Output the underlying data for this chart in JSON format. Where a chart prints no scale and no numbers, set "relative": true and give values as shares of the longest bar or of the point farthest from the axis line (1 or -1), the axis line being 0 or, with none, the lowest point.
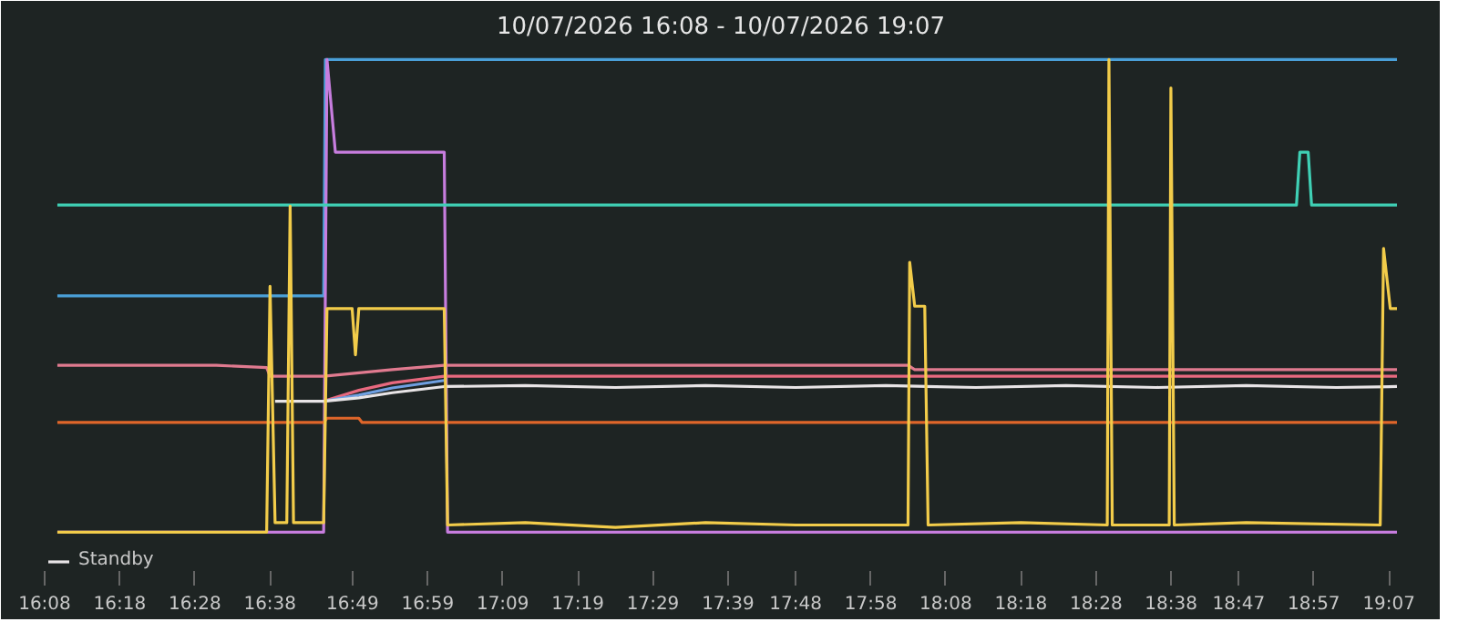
{
  "chart_data": {
    "type": "line",
    "title": "10/07/2026 16:08 - 10/07/2026 19:07",
    "relative": true,
    "legend": "bottom left",
    "grid": false,
    "xlim": [
      16.1333,
      19.1345
    ],
    "xticks": [
      {
        "value": 16.1333,
        "label": "16:08"
      },
      {
        "value": 16.3,
        "label": "16:18"
      },
      {
        "value": 16.4667,
        "label": "16:28"
      },
      {
        "value": 16.6333,
        "label": "16:38"
      },
      {
        "value": 16.8167,
        "label": "16:49"
      },
      {
        "value": 16.9833,
        "label": "16:59"
      },
      {
        "value": 17.15,
        "label": "17:09"
      },
      {
        "value": 17.3167,
        "label": "17:19"
      },
      {
        "value": 17.4833,
        "label": "17:29"
      },
      {
        "value": 17.65,
        "label": "17:39"
      },
      {
        "value": 17.8,
        "label": "17:48"
      },
      {
        "value": 17.9667,
        "label": "17:58"
      },
      {
        "value": 18.1333,
        "label": "18:08"
      },
      {
        "value": 18.3,
        "label": "18:18"
      },
      {
        "value": 18.4667,
        "label": "18:28"
      },
      {
        "value": 18.6333,
        "label": "18:38"
      },
      {
        "value": 18.7833,
        "label": "18:47"
      },
      {
        "value": 18.95,
        "label": "18:57"
      },
      {
        "value": 19.1167,
        "label": "19:07"
      }
    ],
    "series": [
      {
        "color": "#4a9fd8",
        "x": [
          16.1615,
          16.7525,
          16.7563,
          19.1345
        ],
        "values": [
          0.5,
          0.5,
          1.0,
          1.0
        ]
      },
      {
        "color": "#c77dde",
        "x": [
          16.1615,
          16.7525,
          16.7599,
          16.7785,
          17.0201,
          17.0275,
          19.1345
        ],
        "values": [
          0,
          0,
          1.0,
          0.804,
          0.804,
          0,
          0
        ]
      },
      {
        "color": "#3fd0b5",
        "x": [
          16.1615,
          18.9115,
          18.919,
          18.9375,
          18.945,
          19.1345
        ],
        "values": [
          0.692,
          0.692,
          0.804,
          0.804,
          0.692,
          0.692
        ]
      },
      {
        "color": "#e07a8f",
        "x": [
          16.1615,
          16.5146,
          16.626,
          16.6335,
          16.7525,
          16.9049,
          17.0201,
          18.0494,
          18.0642,
          19.1345
        ],
        "values": [
          0.353,
          0.353,
          0.348,
          0.33,
          0.33,
          0.344,
          0.353,
          0.353,
          0.344,
          0.344
        ]
      },
      {
        "color": "#e8697f",
        "x": [
          16.7525,
          16.8305,
          16.9049,
          17.0201,
          19.1345
        ],
        "values": [
          0.277,
          0.3,
          0.316,
          0.33,
          0.33
        ]
      },
      {
        "color": "#6f9fe0",
        "x": [
          16.7525,
          16.8305,
          16.9049,
          17.0201
        ],
        "values": [
          0.277,
          0.29,
          0.305,
          0.321
        ]
      },
      {
        "name": "Standby",
        "color": "#e8e4e6",
        "x": [
          16.6447,
          16.7525,
          16.8305,
          16.9049,
          17.0201,
          17.2,
          17.4,
          17.6,
          17.8,
          18.0,
          18.2,
          18.4,
          18.6,
          18.8,
          19.0,
          19.1345
        ],
        "values": [
          0.277,
          0.277,
          0.284,
          0.295,
          0.308,
          0.31,
          0.306,
          0.31,
          0.306,
          0.31,
          0.306,
          0.31,
          0.306,
          0.31,
          0.306,
          0.308
        ]
      },
      {
        "color": "#e0662a",
        "x": [
          16.1615,
          16.7525,
          16.7599,
          16.8305,
          16.8379,
          19.1345
        ],
        "values": [
          0.232,
          0.232,
          0.241,
          0.241,
          0.232,
          0.232
        ]
      },
      {
        "color": "#f2cc4a",
        "x": [
          16.1615,
          16.626,
          16.6335,
          16.6447,
          16.6707,
          16.6781,
          16.6856,
          16.7525,
          16.7599,
          16.8157,
          16.8231,
          16.8305,
          17.0201,
          17.0275,
          17.2,
          17.4,
          17.6,
          17.8,
          18.0494,
          18.0531,
          18.0642,
          18.0865,
          18.094,
          18.3,
          18.4916,
          18.4953,
          18.5027,
          18.6291,
          18.6328,
          18.6403,
          18.8,
          19.0974,
          19.1048,
          19.1197,
          19.1345
        ],
        "values": [
          0,
          0,
          0.52,
          0.02,
          0.02,
          0.69,
          0.02,
          0.02,
          0.473,
          0.473,
          0.375,
          0.473,
          0.473,
          0.015,
          0.02,
          0.01,
          0.02,
          0.015,
          0.015,
          0.571,
          0.478,
          0.478,
          0.015,
          0.02,
          0.015,
          1.0,
          0.015,
          0.015,
          0.94,
          0.015,
          0.02,
          0.015,
          0.6,
          0.473,
          0.473
        ]
      }
    ]
  }
}
